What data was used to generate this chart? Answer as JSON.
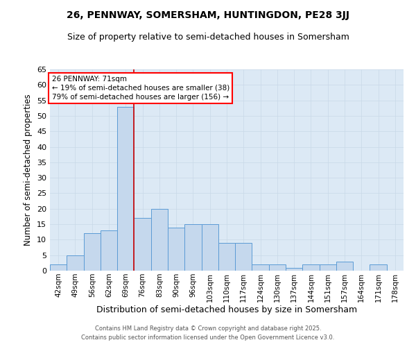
{
  "title1": "26, PENNWAY, SOMERSHAM, HUNTINGDON, PE28 3JJ",
  "title2": "Size of property relative to semi-detached houses in Somersham",
  "xlabel": "Distribution of semi-detached houses by size in Somersham",
  "ylabel": "Number of semi-detached properties",
  "categories": [
    "42sqm",
    "49sqm",
    "56sqm",
    "62sqm",
    "69sqm",
    "76sqm",
    "83sqm",
    "90sqm",
    "96sqm",
    "103sqm",
    "110sqm",
    "117sqm",
    "124sqm",
    "130sqm",
    "137sqm",
    "144sqm",
    "151sqm",
    "157sqm",
    "164sqm",
    "171sqm",
    "178sqm"
  ],
  "values": [
    2,
    5,
    12,
    13,
    53,
    17,
    20,
    14,
    15,
    15,
    9,
    9,
    2,
    2,
    1,
    2,
    2,
    3,
    0,
    2,
    0
  ],
  "bar_color": "#c5d8ed",
  "bar_edge_color": "#5b9bd5",
  "red_line_index": 4,
  "annotation_title": "26 PENNWAY: 71sqm",
  "annotation_line2": "← 19% of semi-detached houses are smaller (38)",
  "annotation_line3": "79% of semi-detached houses are larger (156) →",
  "grid_color": "#c8d8e8",
  "bg_color": "#dce9f5",
  "ylim": [
    0,
    65
  ],
  "yticks": [
    0,
    5,
    10,
    15,
    20,
    25,
    30,
    35,
    40,
    45,
    50,
    55,
    60,
    65
  ],
  "footer1": "Contains HM Land Registry data © Crown copyright and database right 2025.",
  "footer2": "Contains public sector information licensed under the Open Government Licence v3.0.",
  "red_line_color": "#cc0000",
  "title1_fontsize": 10,
  "title2_fontsize": 9
}
